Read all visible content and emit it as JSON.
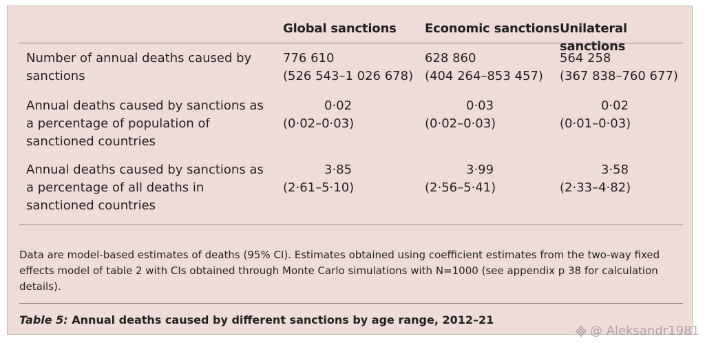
{
  "table": {
    "columns": [
      "Global sanctions",
      "Economic sanctions",
      "Unilateral sanctions"
    ],
    "rows": [
      {
        "label": "Number of annual deaths caused by sanctions",
        "values": [
          {
            "point": "776 610",
            "ci": "(526 543–1 026 678)"
          },
          {
            "point": "628 860",
            "ci": "(404 264–853 457)"
          },
          {
            "point": "564 258",
            "ci": "(367 838–760 677)"
          }
        ]
      },
      {
        "label": "Annual deaths caused by sanctions as a percentage of population of sanctioned countries",
        "values": [
          {
            "point": "0·02",
            "ci": "(0·02–0·03)"
          },
          {
            "point": "0·03",
            "ci": "(0·02–0·03)"
          },
          {
            "point": "0·02",
            "ci": "(0·01–0·03)"
          }
        ]
      },
      {
        "label": "Annual deaths caused by sanctions as a percentage of all deaths in sanctioned countries",
        "values": [
          {
            "point": "3·85",
            "ci": "(2·61–5·10)"
          },
          {
            "point": "3·99",
            "ci": "(2·56–5·41)"
          },
          {
            "point": "3·58",
            "ci": "(2·33–4·82)"
          }
        ]
      }
    ],
    "note": "Data are model-based estimates of deaths (95% CI). Estimates obtained using coefficient estimates from the two-way fixed effects model of table 2 with CIs obtained through Monte Carlo simulations with N=1000 (see appendix p 38 for calculation details).",
    "caption_label": "Table 5:",
    "caption_text": " Annual deaths caused by different sanctions by age range, 2012–21"
  },
  "watermark": {
    "text": "@ Aleksandr1981",
    "icon": "diamond-logo-icon"
  }
}
